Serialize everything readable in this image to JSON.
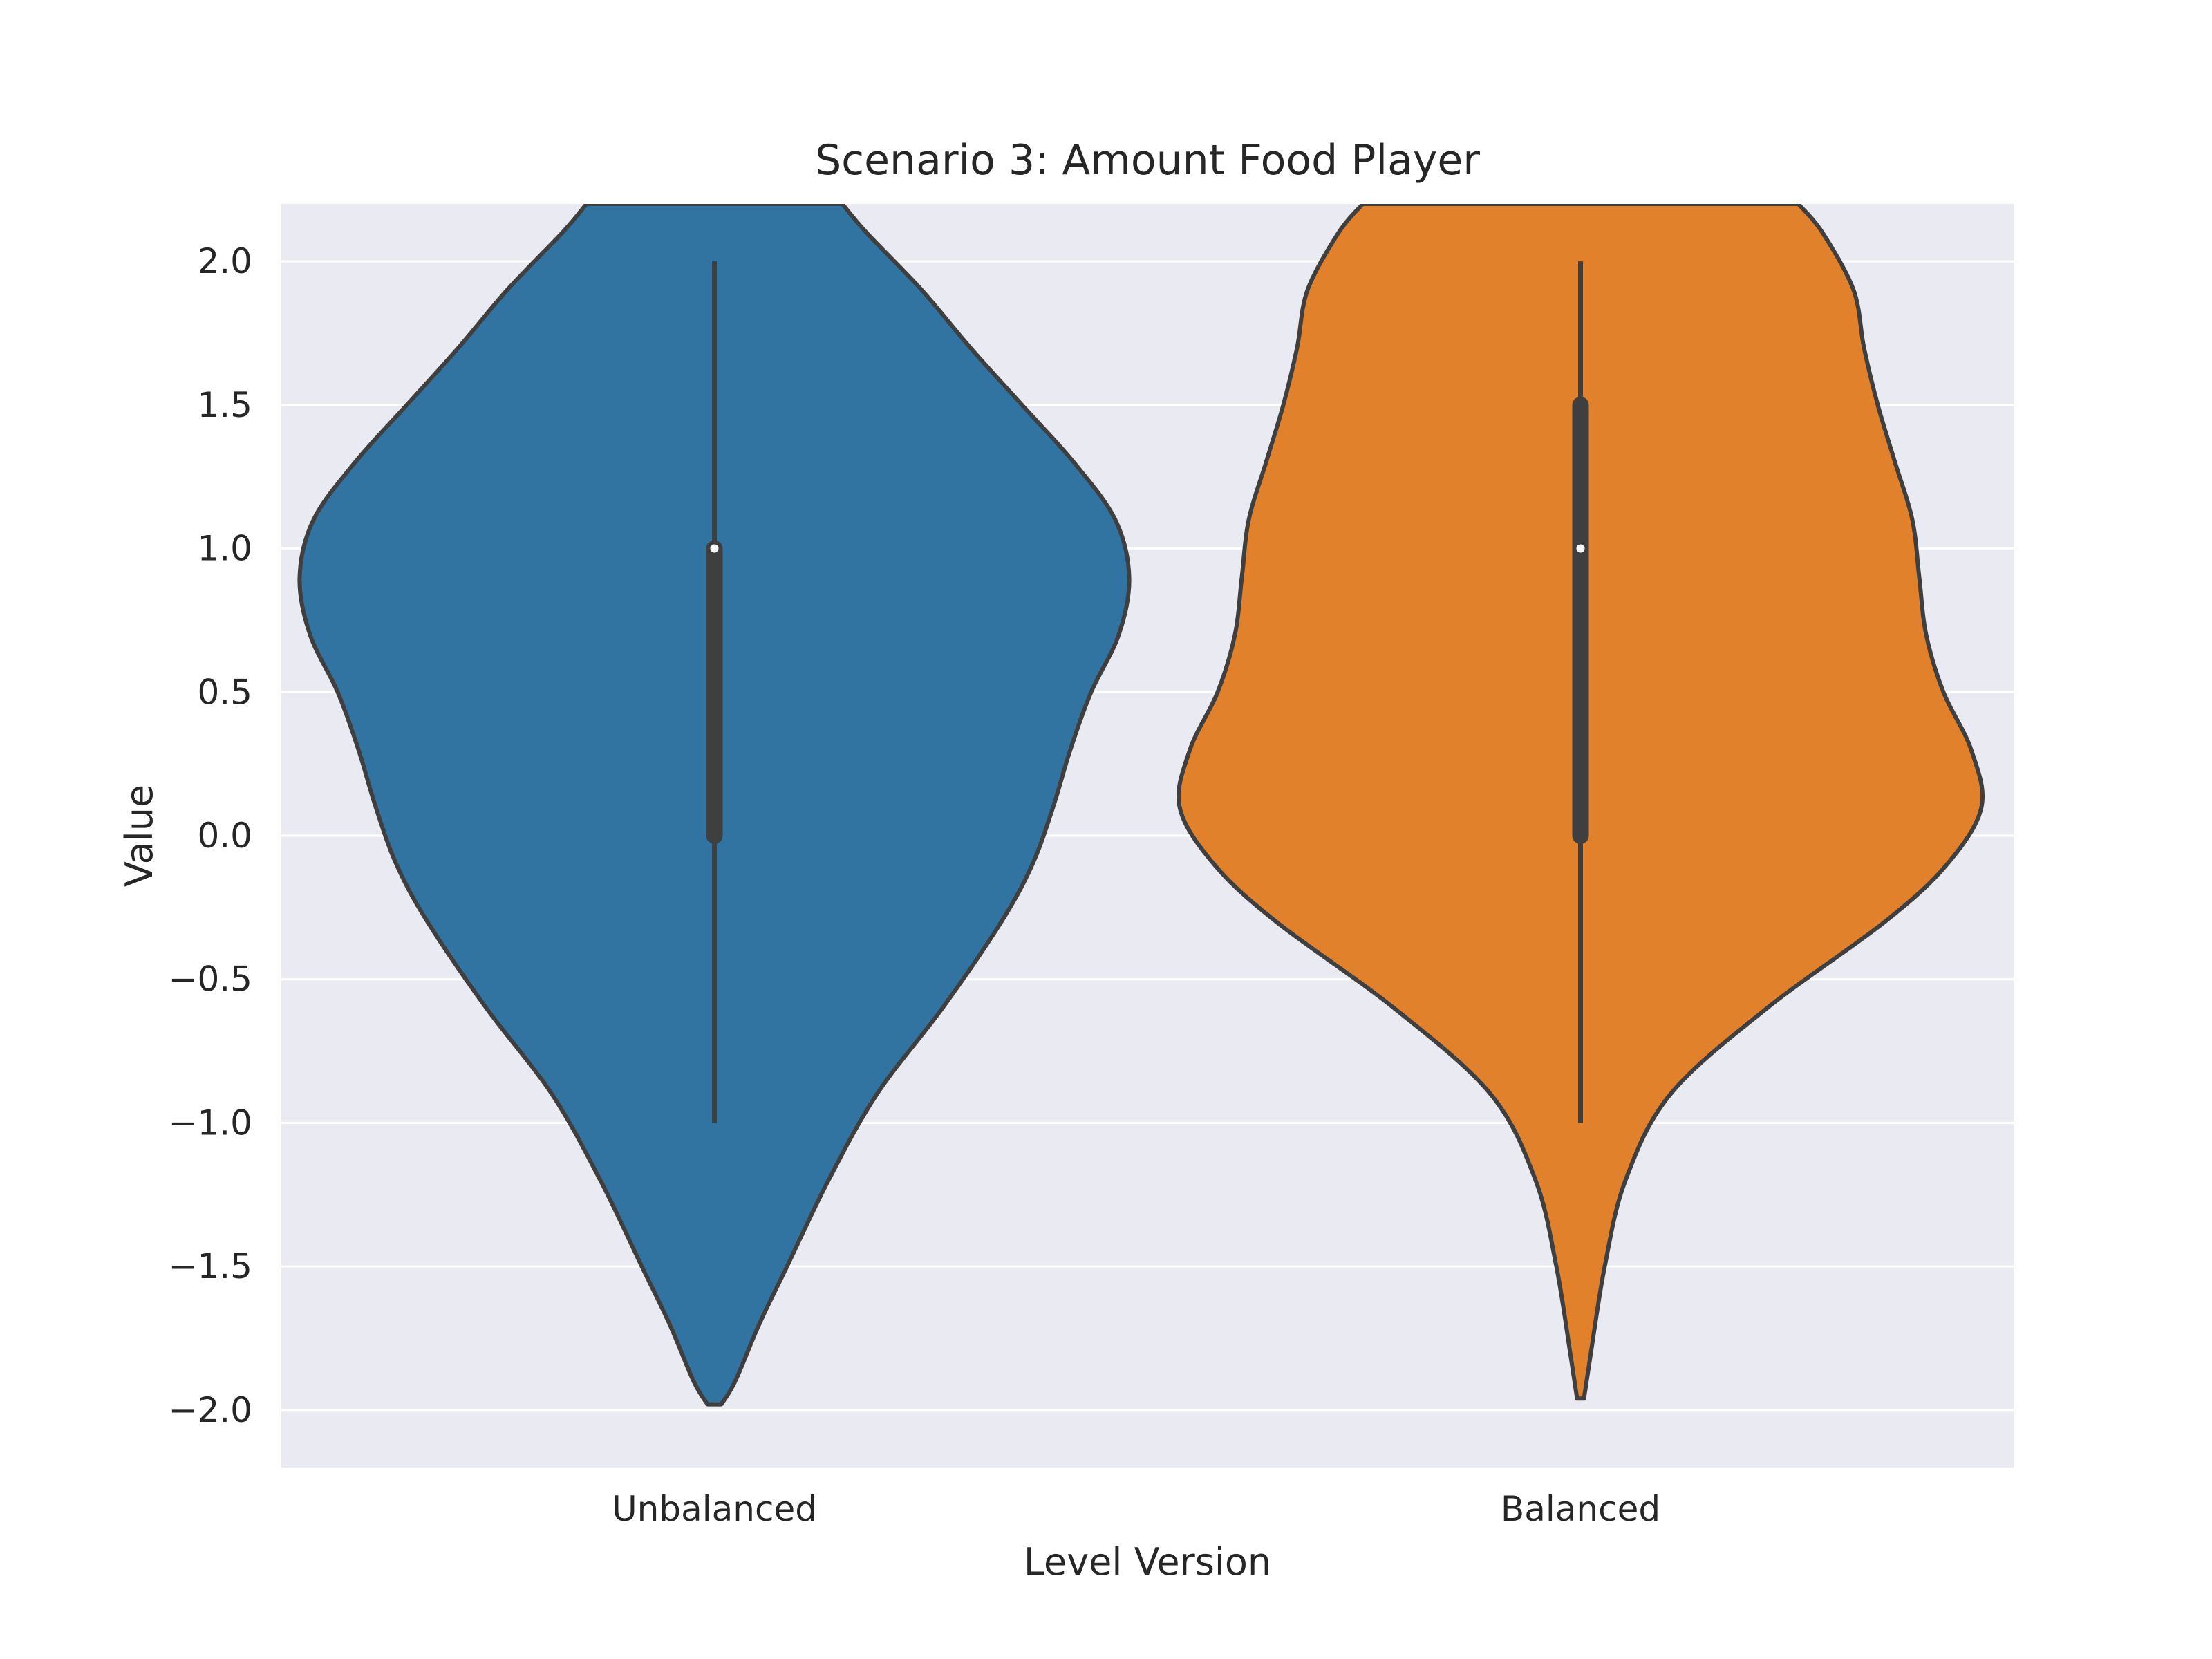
{
  "chart_data": {
    "type": "violin",
    "title": "Scenario 3: Amount Food Player",
    "xlabel": "Level Version",
    "ylabel": "Value",
    "categories": [
      "Unbalanced",
      "Balanced"
    ],
    "ylim": [
      -2.2,
      2.2
    ],
    "yticks": [
      -2.0,
      -1.5,
      -1.0,
      -0.5,
      0.0,
      0.5,
      1.0,
      1.5,
      2.0
    ],
    "ytick_labels": [
      "−2.0",
      "−1.5",
      "−1.0",
      "−0.5",
      "0.0",
      "0.5",
      "1.0",
      "1.5",
      "2.0"
    ],
    "grid": true,
    "background_color": "#eaeaf2",
    "series": [
      {
        "category": "Unbalanced",
        "color": "#3274a1",
        "whisker": [
          -1.0,
          2.0
        ],
        "iqr": [
          0.0,
          1.0
        ],
        "median": 1.0,
        "kde_range": [
          -1.98,
          2.2
        ],
        "density": [
          {
            "y": -1.98,
            "w": 0.02
          },
          {
            "y": -1.9,
            "w": 0.06
          },
          {
            "y": -1.7,
            "w": 0.13
          },
          {
            "y": -1.5,
            "w": 0.21
          },
          {
            "y": -1.2,
            "w": 0.33
          },
          {
            "y": -0.9,
            "w": 0.47
          },
          {
            "y": -0.6,
            "w": 0.66
          },
          {
            "y": -0.3,
            "w": 0.83
          },
          {
            "y": -0.1,
            "w": 0.92
          },
          {
            "y": 0.1,
            "w": 0.98
          },
          {
            "y": 0.3,
            "w": 1.03
          },
          {
            "y": 0.5,
            "w": 1.09
          },
          {
            "y": 0.7,
            "w": 1.17
          },
          {
            "y": 0.9,
            "w": 1.2
          },
          {
            "y": 1.1,
            "w": 1.16
          },
          {
            "y": 1.3,
            "w": 1.04
          },
          {
            "y": 1.5,
            "w": 0.89
          },
          {
            "y": 1.7,
            "w": 0.74
          },
          {
            "y": 1.9,
            "w": 0.6
          },
          {
            "y": 2.1,
            "w": 0.44
          },
          {
            "y": 2.2,
            "w": 0.37
          }
        ]
      },
      {
        "category": "Balanced",
        "color": "#e1812c",
        "whisker": [
          -1.0,
          2.0
        ],
        "iqr": [
          0.0,
          1.5
        ],
        "median": 1.0,
        "kde_range": [
          -1.96,
          2.2
        ],
        "density": [
          {
            "y": -1.96,
            "w": 0.01
          },
          {
            "y": -1.8,
            "w": 0.03
          },
          {
            "y": -1.5,
            "w": 0.07
          },
          {
            "y": -1.2,
            "w": 0.13
          },
          {
            "y": -0.9,
            "w": 0.26
          },
          {
            "y": -0.6,
            "w": 0.54
          },
          {
            "y": -0.3,
            "w": 0.88
          },
          {
            "y": -0.1,
            "w": 1.06
          },
          {
            "y": 0.1,
            "w": 1.16
          },
          {
            "y": 0.3,
            "w": 1.13
          },
          {
            "y": 0.5,
            "w": 1.05
          },
          {
            "y": 0.7,
            "w": 1.0
          },
          {
            "y": 0.9,
            "w": 0.98
          },
          {
            "y": 1.1,
            "w": 0.96
          },
          {
            "y": 1.3,
            "w": 0.91
          },
          {
            "y": 1.5,
            "w": 0.86
          },
          {
            "y": 1.7,
            "w": 0.82
          },
          {
            "y": 1.9,
            "w": 0.79
          },
          {
            "y": 2.1,
            "w": 0.7
          },
          {
            "y": 2.2,
            "w": 0.63
          }
        ]
      }
    ]
  }
}
